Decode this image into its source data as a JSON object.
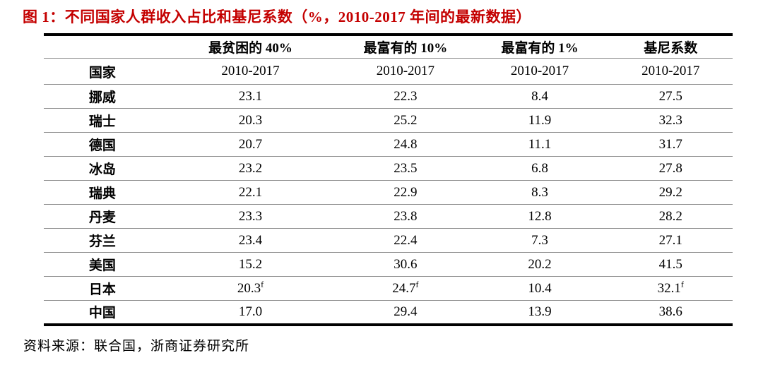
{
  "title": "图 1：不同国家人群收入占比和基尼系数（%，2010-2017 年间的最新数据）",
  "source_note": "资料来源：联合国，浙商证券研究所",
  "colors": {
    "title_red": "#C40000",
    "table_border_black": "#000000",
    "row_line_gray": "#8c8c8c",
    "background": "#ffffff"
  },
  "table": {
    "group_headers": [
      "",
      "最贫困的 40%",
      "最富有的 10%",
      "最富有的 1%",
      "基尼系数"
    ],
    "sub_headers": [
      "国家",
      "2010-2017",
      "2010-2017",
      "2010-2017",
      "2010-2017"
    ],
    "rows": [
      {
        "country": "挪威",
        "values": [
          "23.1",
          "22.3",
          "8.4",
          "27.5"
        ]
      },
      {
        "country": "瑞士",
        "values": [
          "20.3",
          "25.2",
          "11.9",
          "32.3"
        ]
      },
      {
        "country": "德国",
        "values": [
          "20.7",
          "24.8",
          "11.1",
          "31.7"
        ]
      },
      {
        "country": "冰岛",
        "values": [
          "23.2",
          "23.5",
          "6.8",
          "27.8"
        ]
      },
      {
        "country": "瑞典",
        "values": [
          "22.1",
          "22.9",
          "8.3",
          "29.2"
        ]
      },
      {
        "country": "丹麦",
        "values": [
          "23.3",
          "23.8",
          "12.8",
          "28.2"
        ]
      },
      {
        "country": "芬兰",
        "values": [
          "23.4",
          "22.4",
          "7.3",
          "27.1"
        ]
      },
      {
        "country": "美国",
        "values": [
          "15.2",
          "30.6",
          "20.2",
          "41.5"
        ]
      },
      {
        "country": "日本",
        "values": [
          "20.3",
          "24.7",
          "10.4",
          "32.1"
        ],
        "sups": [
          "f",
          "f",
          "",
          "f"
        ]
      },
      {
        "country": "中国",
        "values": [
          "17.0",
          "29.4",
          "13.9",
          "38.6"
        ]
      }
    ]
  },
  "chart_data": {
    "type": "table",
    "title": "图 1：不同国家人群收入占比和基尼系数（%，2010-2017 年间的最新数据）",
    "unit": "%",
    "period": "2010-2017",
    "categories": [
      "挪威",
      "瑞士",
      "德国",
      "冰岛",
      "瑞典",
      "丹麦",
      "芬兰",
      "美国",
      "日本",
      "中国"
    ],
    "series": [
      {
        "name": "最贫困的 40%",
        "values": [
          23.1,
          20.3,
          20.7,
          23.2,
          22.1,
          23.3,
          23.4,
          15.2,
          20.3,
          17.0
        ]
      },
      {
        "name": "最富有的 10%",
        "values": [
          22.3,
          25.2,
          24.8,
          23.5,
          22.9,
          23.8,
          22.4,
          30.6,
          24.7,
          29.4
        ]
      },
      {
        "name": "最富有的 1%",
        "values": [
          8.4,
          11.9,
          11.1,
          6.8,
          8.3,
          12.8,
          7.3,
          20.2,
          10.4,
          13.9
        ]
      },
      {
        "name": "基尼系数",
        "values": [
          27.5,
          32.3,
          31.7,
          27.8,
          29.2,
          28.2,
          27.1,
          41.5,
          32.1,
          38.6
        ]
      }
    ],
    "footnote_marker": "f",
    "footnote_marker_applies_to": {
      "row": "日本",
      "columns": [
        "最贫困的 40%",
        "最富有的 10%",
        "基尼系数"
      ]
    },
    "source": "资料来源：联合国，浙商证券研究所"
  }
}
